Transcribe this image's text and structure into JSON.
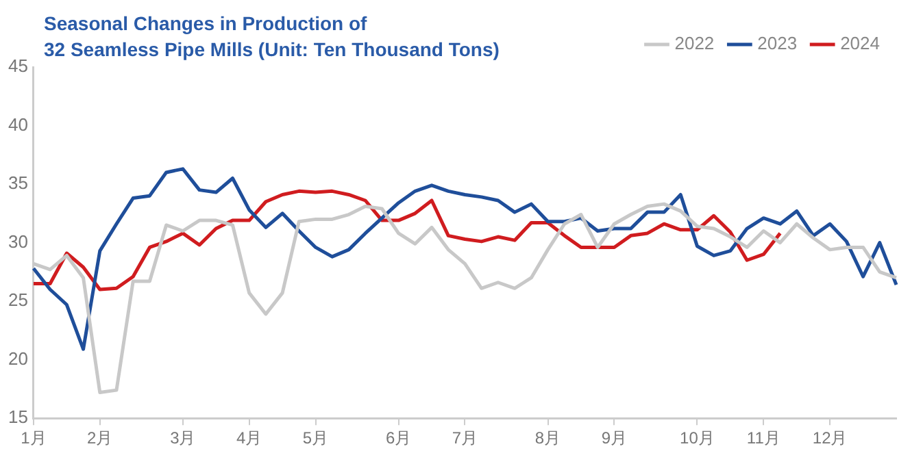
{
  "chart_data": {
    "type": "line",
    "title": "Seasonal Changes in Production of\n32 Seamless Pipe Mills (Unit: Ten Thousand Tons)",
    "categories": [
      "1月",
      null,
      null,
      null,
      "2月",
      null,
      null,
      null,
      null,
      "3月",
      null,
      null,
      null,
      "4月",
      null,
      null,
      null,
      "5月",
      null,
      null,
      null,
      null,
      "6月",
      null,
      null,
      null,
      "7月",
      null,
      null,
      null,
      null,
      "8月",
      null,
      null,
      null,
      "9月",
      null,
      null,
      null,
      null,
      "10月",
      null,
      null,
      null,
      "11月",
      null,
      null,
      null,
      "12月",
      null,
      null,
      null,
      null
    ],
    "ylim": [
      15,
      45
    ],
    "yticks": [
      15,
      20,
      25,
      30,
      35,
      40,
      45
    ],
    "grid": false,
    "legend": "top right",
    "marker": "none",
    "line_style": "solid",
    "series": [
      {
        "name": "2022",
        "color": "#c8c8c8",
        "values": [
          28.2,
          27.7,
          28.9,
          27.0,
          17.2,
          17.4,
          26.7,
          26.7,
          31.5,
          31.0,
          31.9,
          31.9,
          31.5,
          25.7,
          23.9,
          25.7,
          31.8,
          32.0,
          32.0,
          32.4,
          33.1,
          32.9,
          30.8,
          29.9,
          31.3,
          29.4,
          28.2,
          26.1,
          26.6,
          26.1,
          27.0,
          29.4,
          31.6,
          32.4,
          29.6,
          31.6,
          32.4,
          33.1,
          33.3,
          32.7,
          31.4,
          31.2,
          30.5,
          29.6,
          31.0,
          30.0,
          31.6,
          30.4,
          29.4,
          29.6,
          29.6,
          27.5,
          27.0
        ]
      },
      {
        "name": "2023",
        "color": "#1f4e9a",
        "values": [
          27.8,
          26.0,
          24.7,
          20.9,
          29.3,
          31.6,
          33.8,
          34.0,
          36.0,
          36.3,
          34.5,
          34.3,
          35.5,
          32.8,
          31.3,
          32.5,
          31.0,
          29.6,
          28.8,
          29.4,
          30.8,
          32.1,
          33.4,
          34.4,
          34.9,
          34.4,
          34.1,
          33.9,
          33.6,
          32.6,
          33.3,
          31.8,
          31.8,
          32.1,
          31.0,
          31.2,
          31.2,
          32.6,
          32.6,
          34.1,
          29.7,
          28.9,
          29.3,
          31.2,
          32.1,
          31.6,
          32.7,
          30.6,
          31.6,
          30.1,
          27.1,
          30.0,
          26.4
        ]
      },
      {
        "name": "2024",
        "color": "#d01c1f",
        "values": [
          26.5,
          26.5,
          29.1,
          27.9,
          26.0,
          26.1,
          27.1,
          29.6,
          30.1,
          30.8,
          29.8,
          31.2,
          31.9,
          31.9,
          33.5,
          34.1,
          34.4,
          34.3,
          34.4,
          34.1,
          33.6,
          31.9,
          31.9,
          32.5,
          33.6,
          30.6,
          30.3,
          30.1,
          30.5,
          30.2,
          31.7,
          31.7,
          30.6,
          29.6,
          29.6,
          29.6,
          30.6,
          30.8,
          31.6,
          31.1,
          31.1,
          32.3,
          30.9,
          28.5,
          29.0,
          30.8,
          null,
          null,
          null,
          null,
          null,
          null,
          null
        ]
      }
    ]
  }
}
